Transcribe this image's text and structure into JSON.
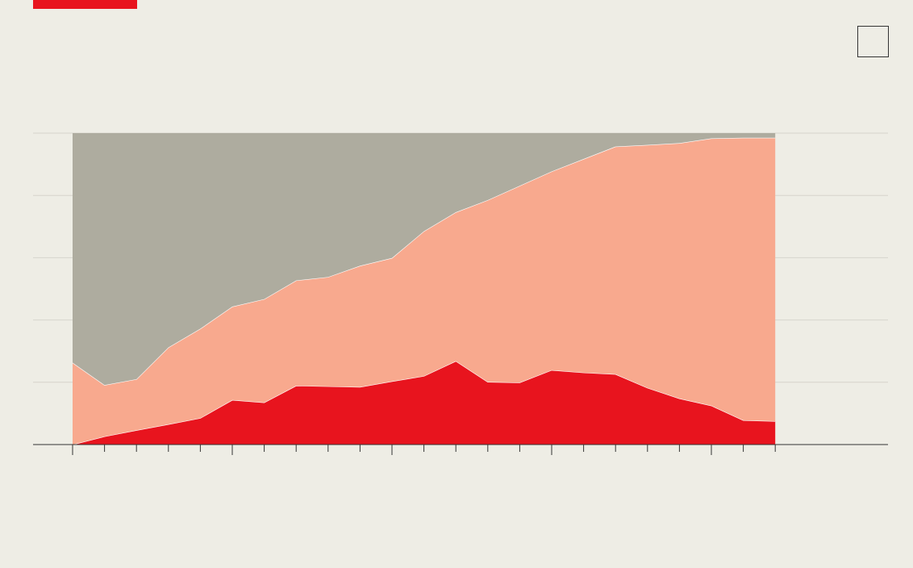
{
  "colors": {
    "background": "#eeede5",
    "accent": "#e8141e",
    "series_bottom": "#e8141e",
    "series_middle": "#f8a98e",
    "series_top": "#aeac9f",
    "gridline": "#d6d4cc",
    "axis": "#333333"
  },
  "chart_data": {
    "type": "area",
    "stacked": true,
    "normalized": true,
    "ylim": [
      0,
      100
    ],
    "y_gridlines": [
      0,
      20,
      40,
      60,
      80,
      100
    ],
    "tick_labels_visible": false,
    "grid": true,
    "x": [
      0,
      1,
      2,
      3,
      4,
      5,
      6,
      7,
      8,
      9,
      10,
      11,
      12,
      13,
      14,
      15,
      16,
      17,
      18,
      19,
      20,
      21,
      22
    ],
    "series": [
      {
        "color": "#e8141e",
        "values": [
          0,
          2.6,
          4.6,
          6.5,
          8.5,
          14.3,
          13.5,
          18.9,
          18.7,
          18.5,
          20.3,
          22.0,
          26.8,
          20.1,
          19.9,
          23.9,
          23.1,
          22.6,
          18.2,
          14.8,
          12.5,
          7.8,
          7.5
        ]
      },
      {
        "color": "#f8a98e",
        "values": [
          26.3,
          16.5,
          16.4,
          24.7,
          28.7,
          30.0,
          33.2,
          33.8,
          35.1,
          38.9,
          39.6,
          46.5,
          47.8,
          58.4,
          63.2,
          63.8,
          68.6,
          73.1,
          78.0,
          82.0,
          85.8,
          90.7,
          91.0
        ]
      },
      {
        "color": "#aeac9f",
        "values": [
          73.7,
          80.9,
          79.0,
          68.8,
          62.8,
          55.7,
          53.3,
          47.3,
          46.2,
          42.6,
          40.1,
          31.5,
          25.4,
          21.5,
          16.9,
          12.3,
          8.3,
          4.3,
          3.8,
          3.2,
          1.7,
          1.5,
          1.5
        ]
      }
    ]
  }
}
